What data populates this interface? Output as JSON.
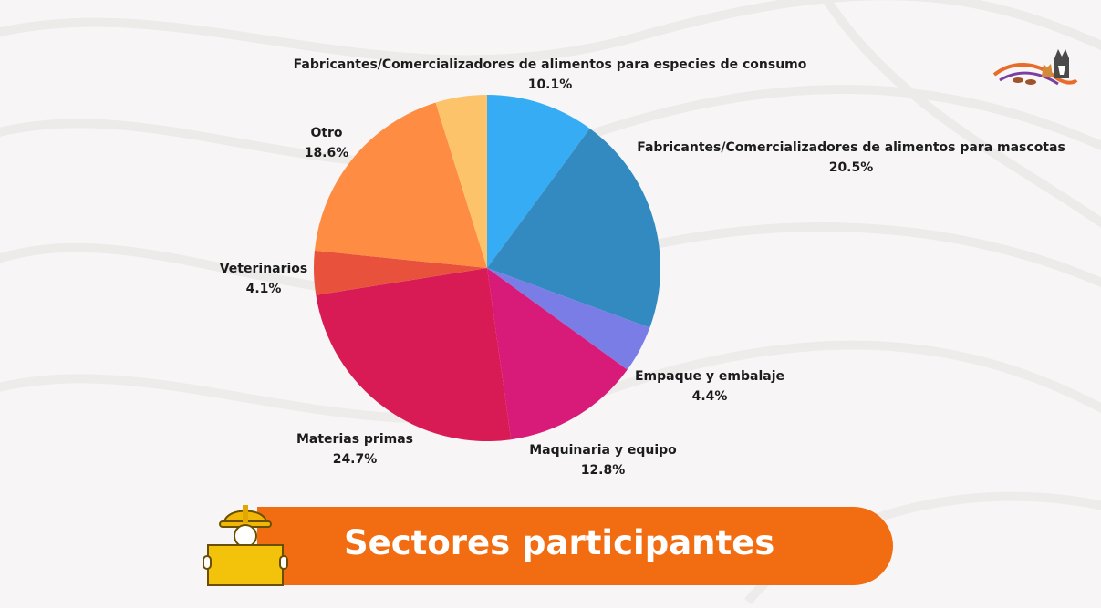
{
  "theme": {
    "background": "#f7f5f5",
    "banner_color": "#f26d12",
    "banner_text_color": "#ffffff"
  },
  "banner": {
    "title": "Sectores participantes",
    "icon": "worker-hardhat-icon"
  },
  "logo": {
    "icon": "pet-brand-logo-icon"
  },
  "chart_data": {
    "type": "pie",
    "title": "",
    "start_angle_deg": 0,
    "direction": "clockwise",
    "slices": [
      {
        "name": "Fabricantes/Comercializadores de alimentos para especies de consumo",
        "value": 10.1,
        "value_label": "10.1%",
        "color": "#36acf5"
      },
      {
        "name": "Fabricantes/Comercializadores de alimentos para mascotas",
        "value": 20.5,
        "value_label": "20.5%",
        "color": "#338ac0"
      },
      {
        "name": "Empaque y embalaje",
        "value": 4.4,
        "value_label": "4.4%",
        "color": "#7a7de6"
      },
      {
        "name": "Maquinaria y equipo",
        "value": 12.8,
        "value_label": "12.8%",
        "color": "#d81b78"
      },
      {
        "name": "Materias primas",
        "value": 24.7,
        "value_label": "24.7%",
        "color": "#d81b55"
      },
      {
        "name": "Veterinarios",
        "value": 4.1,
        "value_label": "4.1%",
        "color": "#e8513b"
      },
      {
        "name": "Otro",
        "value": 18.6,
        "value_label": "18.6%",
        "color": "#fe8c42"
      },
      {
        "name": "",
        "value": 4.8,
        "value_label": "",
        "color": "#fdc36a"
      }
    ]
  }
}
